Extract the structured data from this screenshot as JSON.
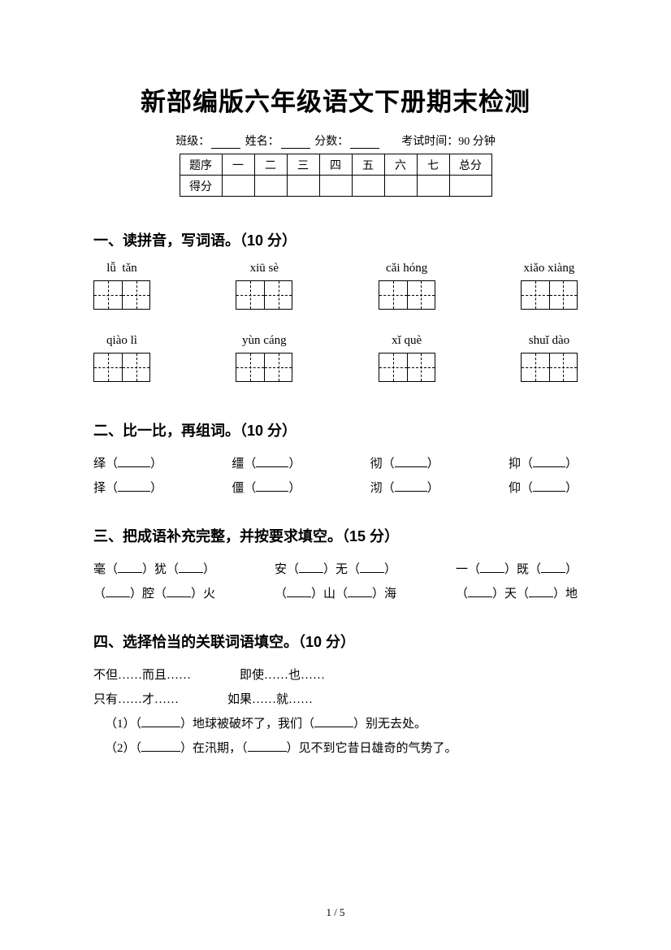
{
  "title": "新部编版六年级语文下册期末检测",
  "info": {
    "class_label": "班级：",
    "name_label": "姓名：",
    "score_label": "分数：",
    "time_label": "考试时间：90 分钟"
  },
  "score_table": {
    "row1": [
      "题序",
      "一",
      "二",
      "三",
      "四",
      "五",
      "六",
      "七",
      "总分"
    ],
    "row2_label": "得分"
  },
  "q1": {
    "heading": "一、读拼音，写词语。（10 分）",
    "row1": [
      "lǚ  tǎn",
      "xiū sè",
      "cǎi hóng",
      "xiǎo xiàng"
    ],
    "row2": [
      "qiào lì",
      "yùn cáng",
      "xǐ què",
      "shuǐ dào"
    ]
  },
  "q2": {
    "heading": "二、比一比，再组词。（10 分）",
    "pairs": [
      [
        "绎",
        "缰",
        "彻",
        "抑"
      ],
      [
        "择",
        "僵",
        "沏",
        "仰"
      ]
    ]
  },
  "q3": {
    "heading": "三、把成语补充完整，并按要求填空。（15 分）",
    "row1": [
      {
        "pre": "毫（",
        "mid1": "）犹（",
        "end": "）"
      },
      {
        "pre": "安（",
        "mid1": "）无（",
        "end": "）"
      },
      {
        "pre": "一（",
        "mid1": "）既（",
        "end": "）"
      }
    ],
    "row2": [
      {
        "pre": "（",
        "mid1": "）腔（",
        "mid2": "）火"
      },
      {
        "pre": "（",
        "mid1": "）山（",
        "mid2": "）海"
      },
      {
        "pre": "（",
        "mid1": "）天（",
        "mid2": "）地"
      }
    ]
  },
  "q4": {
    "heading": "四、选择恰当的关联词语填空。（10 分）",
    "opts_row1": [
      "不但……而且……",
      "即使……也……"
    ],
    "opts_row2": [
      "只有……才……",
      "如果……就……"
    ],
    "s1a": "（1）（",
    "s1b": "）地球被破坏了，我们（",
    "s1c": "）别无去处。",
    "s2a": "（2）（",
    "s2b": "）在汛期，（",
    "s2c": "）见不到它昔日雄奇的气势了。"
  },
  "pagenum": "1 / 5"
}
